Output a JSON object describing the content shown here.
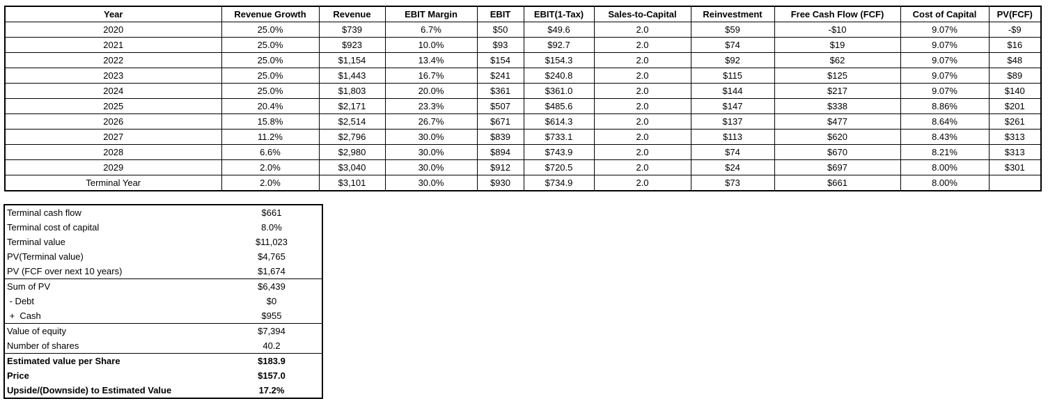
{
  "colors": {
    "background": "#ffffff",
    "text": "#000000",
    "border": "#000000"
  },
  "chart_data": [
    {
      "type": "table",
      "columns": [
        "Year",
        "Revenue Growth",
        "Revenue",
        "EBIT Margin",
        "EBIT",
        "EBIT(1-Tax)",
        "Sales-to-Capital",
        "Reinvestment",
        "Free Cash Flow (FCF)",
        "Cost of Capital",
        "PV(FCF)"
      ],
      "rows": [
        [
          "2020",
          "25.0%",
          "$739",
          "6.7%",
          "$50",
          "$49.6",
          "2.0",
          "$59",
          "-$10",
          "9.07%",
          "-$9"
        ],
        [
          "2021",
          "25.0%",
          "$923",
          "10.0%",
          "$93",
          "$92.7",
          "2.0",
          "$74",
          "$19",
          "9.07%",
          "$16"
        ],
        [
          "2022",
          "25.0%",
          "$1,154",
          "13.4%",
          "$154",
          "$154.3",
          "2.0",
          "$92",
          "$62",
          "9.07%",
          "$48"
        ],
        [
          "2023",
          "25.0%",
          "$1,443",
          "16.7%",
          "$241",
          "$240.8",
          "2.0",
          "$115",
          "$125",
          "9.07%",
          "$89"
        ],
        [
          "2024",
          "25.0%",
          "$1,803",
          "20.0%",
          "$361",
          "$361.0",
          "2.0",
          "$144",
          "$217",
          "9.07%",
          "$140"
        ],
        [
          "2025",
          "20.4%",
          "$2,171",
          "23.3%",
          "$507",
          "$485.6",
          "2.0",
          "$147",
          "$338",
          "8.86%",
          "$201"
        ],
        [
          "2026",
          "15.8%",
          "$2,514",
          "26.7%",
          "$671",
          "$614.3",
          "2.0",
          "$137",
          "$477",
          "8.64%",
          "$261"
        ],
        [
          "2027",
          "11.2%",
          "$2,796",
          "30.0%",
          "$839",
          "$733.1",
          "2.0",
          "$113",
          "$620",
          "8.43%",
          "$313"
        ],
        [
          "2028",
          "6.6%",
          "$2,980",
          "30.0%",
          "$894",
          "$743.9",
          "2.0",
          "$74",
          "$670",
          "8.21%",
          "$313"
        ],
        [
          "2029",
          "2.0%",
          "$3,040",
          "30.0%",
          "$912",
          "$720.5",
          "2.0",
          "$24",
          "$697",
          "8.00%",
          "$301"
        ],
        [
          "Terminal Year",
          "2.0%",
          "$3,101",
          "30.0%",
          "$930",
          "$734.9",
          "2.0",
          "$73",
          "$661",
          "8.00%",
          ""
        ]
      ]
    },
    {
      "type": "table",
      "rows": [
        {
          "label": "Terminal cash flow",
          "value": "$661",
          "bold": false,
          "separator_above": false
        },
        {
          "label": "Terminal cost of capital",
          "value": "8.0%",
          "bold": false,
          "separator_above": false
        },
        {
          "label": "Terminal value",
          "value": "$11,023",
          "bold": false,
          "separator_above": false
        },
        {
          "label": "PV(Terminal value)",
          "value": "$4,765",
          "bold": false,
          "separator_above": false
        },
        {
          "label": "PV (FCF over next 10 years)",
          "value": "$1,674",
          "bold": false,
          "separator_above": false
        },
        {
          "label": "Sum of PV",
          "value": "$6,439",
          "bold": false,
          "separator_above": true
        },
        {
          "label": " - Debt",
          "value": "$0",
          "bold": false,
          "separator_above": false
        },
        {
          "label": " +  Cash",
          "value": "$955",
          "bold": false,
          "separator_above": false
        },
        {
          "label": "Value of equity",
          "value": "$7,394",
          "bold": false,
          "separator_above": true
        },
        {
          "label": "Number of shares",
          "value": "40.2",
          "bold": false,
          "separator_above": false
        },
        {
          "label": "Estimated value per Share",
          "value": "$183.9",
          "bold": true,
          "separator_above": true
        },
        {
          "label": "Price",
          "value": "$157.0",
          "bold": true,
          "separator_above": false
        },
        {
          "label": "Upside/(Downside) to Estimated Value",
          "value": "17.2%",
          "bold": true,
          "separator_above": false
        }
      ]
    }
  ]
}
